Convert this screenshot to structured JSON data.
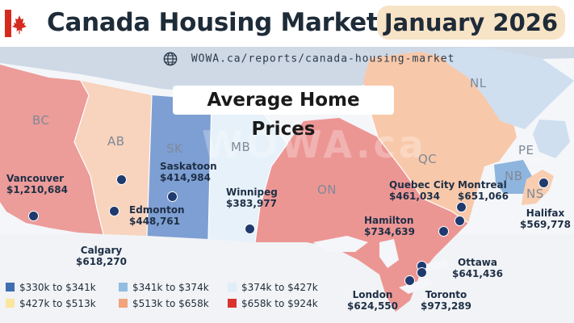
{
  "header": {
    "title": "Canada Housing Market:",
    "date_pill": "January 2026",
    "flag_colors": {
      "red": "#d52b1e",
      "white": "#ffffff"
    }
  },
  "map": {
    "source_url": "WOWA.ca/reports/canada-housing-market",
    "title": "Average Home Prices",
    "watermark": "WOWA.ca",
    "provinces": [
      {
        "abbr": "BC"
      },
      {
        "abbr": "AB"
      },
      {
        "abbr": "SK"
      },
      {
        "abbr": "MB"
      },
      {
        "abbr": "ON"
      },
      {
        "abbr": "QC"
      },
      {
        "abbr": "NL"
      },
      {
        "abbr": "NB"
      },
      {
        "abbr": "NS"
      },
      {
        "abbr": "PE"
      }
    ],
    "cities": [
      {
        "name": "Vancouver",
        "price": "$1,210,684"
      },
      {
        "name": "Edmonton",
        "price": "$448,761"
      },
      {
        "name": "Calgary",
        "price": "$618,270"
      },
      {
        "name": "Saskatoon",
        "price": "$414,984"
      },
      {
        "name": "Winnipeg",
        "price": "$383,977"
      },
      {
        "name": "Hamilton",
        "price": "$734,639"
      },
      {
        "name": "London",
        "price": "$624,550"
      },
      {
        "name": "Toronto",
        "price": "$973,289"
      },
      {
        "name": "Ottawa",
        "price": "$641,436"
      },
      {
        "name": "Quebec City",
        "price": "$461,034"
      },
      {
        "name": "Montreal",
        "price": "$651,066"
      },
      {
        "name": "Halifax",
        "price": "$569,778"
      }
    ]
  },
  "legend": [
    {
      "label": "$330k to $341k",
      "color": "#3f6fb0"
    },
    {
      "label": "$341k to $374k",
      "color": "#93bde0"
    },
    {
      "label": "$374k to $427k",
      "color": "#dfedf8"
    },
    {
      "label": "$427k to $513k",
      "color": "#fbe6a0"
    },
    {
      "label": "$513k to $658k",
      "color": "#f3a37b"
    },
    {
      "label": "$658k to $924k",
      "color": "#d9332e"
    }
  ],
  "region_colors": {
    "BC": "#ec9c99",
    "AB": "#f8d3bd",
    "SK": "#7e9fd3",
    "MB": "#e6f1fa",
    "ON": "#ec9694",
    "QC": "#f8c8aa",
    "NL": "#cfdff0",
    "NB": "#8eb5de",
    "NS": "#f8cdb0",
    "PE": "#f6f7f9",
    "north": "#cfd9e6",
    "us": "#f1f3f6"
  }
}
